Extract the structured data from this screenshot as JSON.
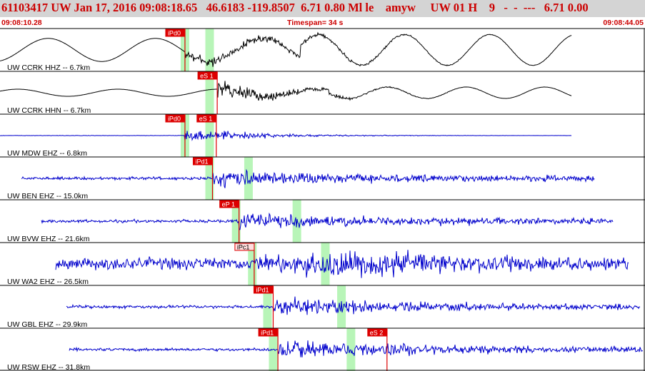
{
  "header": {
    "event_line": "61103417 UW Jan 17, 2016 09:08:18.65   46.6183 -119.8507  6.71 0.80 Ml le    amyw     UW 01 H    9   -  -  ---   6.71 0.00",
    "start_time": "09:08:10.28",
    "timespan": "Timespan=  34 s",
    "end_time": "09:08:44.05"
  },
  "colors": {
    "pick": "#dd0000",
    "window": "#b8f5b8",
    "trace_black": "#000000",
    "trace_blue": "#0000cc"
  },
  "traces": [
    {
      "label": "UW CCRK HHZ -- 6.7km",
      "color": "black",
      "kind": "lowfreq",
      "picks": [
        {
          "label": "iPd0",
          "t": 9.75,
          "style": "solid"
        }
      ],
      "windows": [
        {
          "t": 9.75
        },
        {
          "t": 11.05
        }
      ]
    },
    {
      "label": "UW CCRK HHN -- 6.7km",
      "color": "black",
      "kind": "lowfreq2",
      "picks": [
        {
          "label": "eS 1",
          "t": 11.45,
          "style": "solid"
        }
      ],
      "windows": [
        {
          "t": 11.05
        }
      ]
    },
    {
      "label": "UW MDW EHZ -- 6.8km",
      "color": "blue",
      "kind": "local",
      "picks": [
        {
          "label": "iPd0",
          "t": 9.75,
          "style": "solid"
        },
        {
          "label": "eS 1",
          "t": 11.4,
          "style": "solid"
        }
      ],
      "windows": [
        {
          "t": 9.75
        },
        {
          "t": 11.05
        }
      ]
    },
    {
      "label": "UW BEN EHZ -- 15.0km",
      "color": "blue",
      "kind": "regional",
      "picks": [
        {
          "label": "iPd1",
          "t": 11.2,
          "style": "solid"
        }
      ],
      "windows": [
        {
          "t": 11.05
        },
        {
          "t": 13.1
        }
      ]
    },
    {
      "label": "UW BVW EHZ -- 21.6km",
      "color": "blue",
      "kind": "regional",
      "picks": [
        {
          "label": "eP 1",
          "t": 12.6,
          "style": "solid"
        }
      ],
      "windows": [
        {
          "t": 12.45
        },
        {
          "t": 15.65
        }
      ]
    },
    {
      "label": "UW WA2 EHZ -- 26.5km",
      "color": "blue",
      "kind": "noisy",
      "picks": [
        {
          "label": "iPc1",
          "t": 13.4,
          "style": "outline"
        }
      ],
      "windows": [
        {
          "t": 13.3
        },
        {
          "t": 17.15
        }
      ]
    },
    {
      "label": "UW GBL EHZ -- 29.9km",
      "color": "blue",
      "kind": "regional",
      "picks": [
        {
          "label": "iPd1",
          "t": 14.4,
          "style": "solid"
        }
      ],
      "windows": [
        {
          "t": 14.1
        },
        {
          "t": 18.0
        }
      ]
    },
    {
      "label": "UW RSW EHZ -- 31.8km",
      "color": "blue",
      "kind": "regional",
      "picks": [
        {
          "label": "iPd1",
          "t": 14.65,
          "style": "solid"
        },
        {
          "label": "eS 2",
          "t": 20.4,
          "style": "solid"
        }
      ],
      "windows": [
        {
          "t": 14.4
        },
        {
          "t": 18.5
        }
      ]
    }
  ]
}
